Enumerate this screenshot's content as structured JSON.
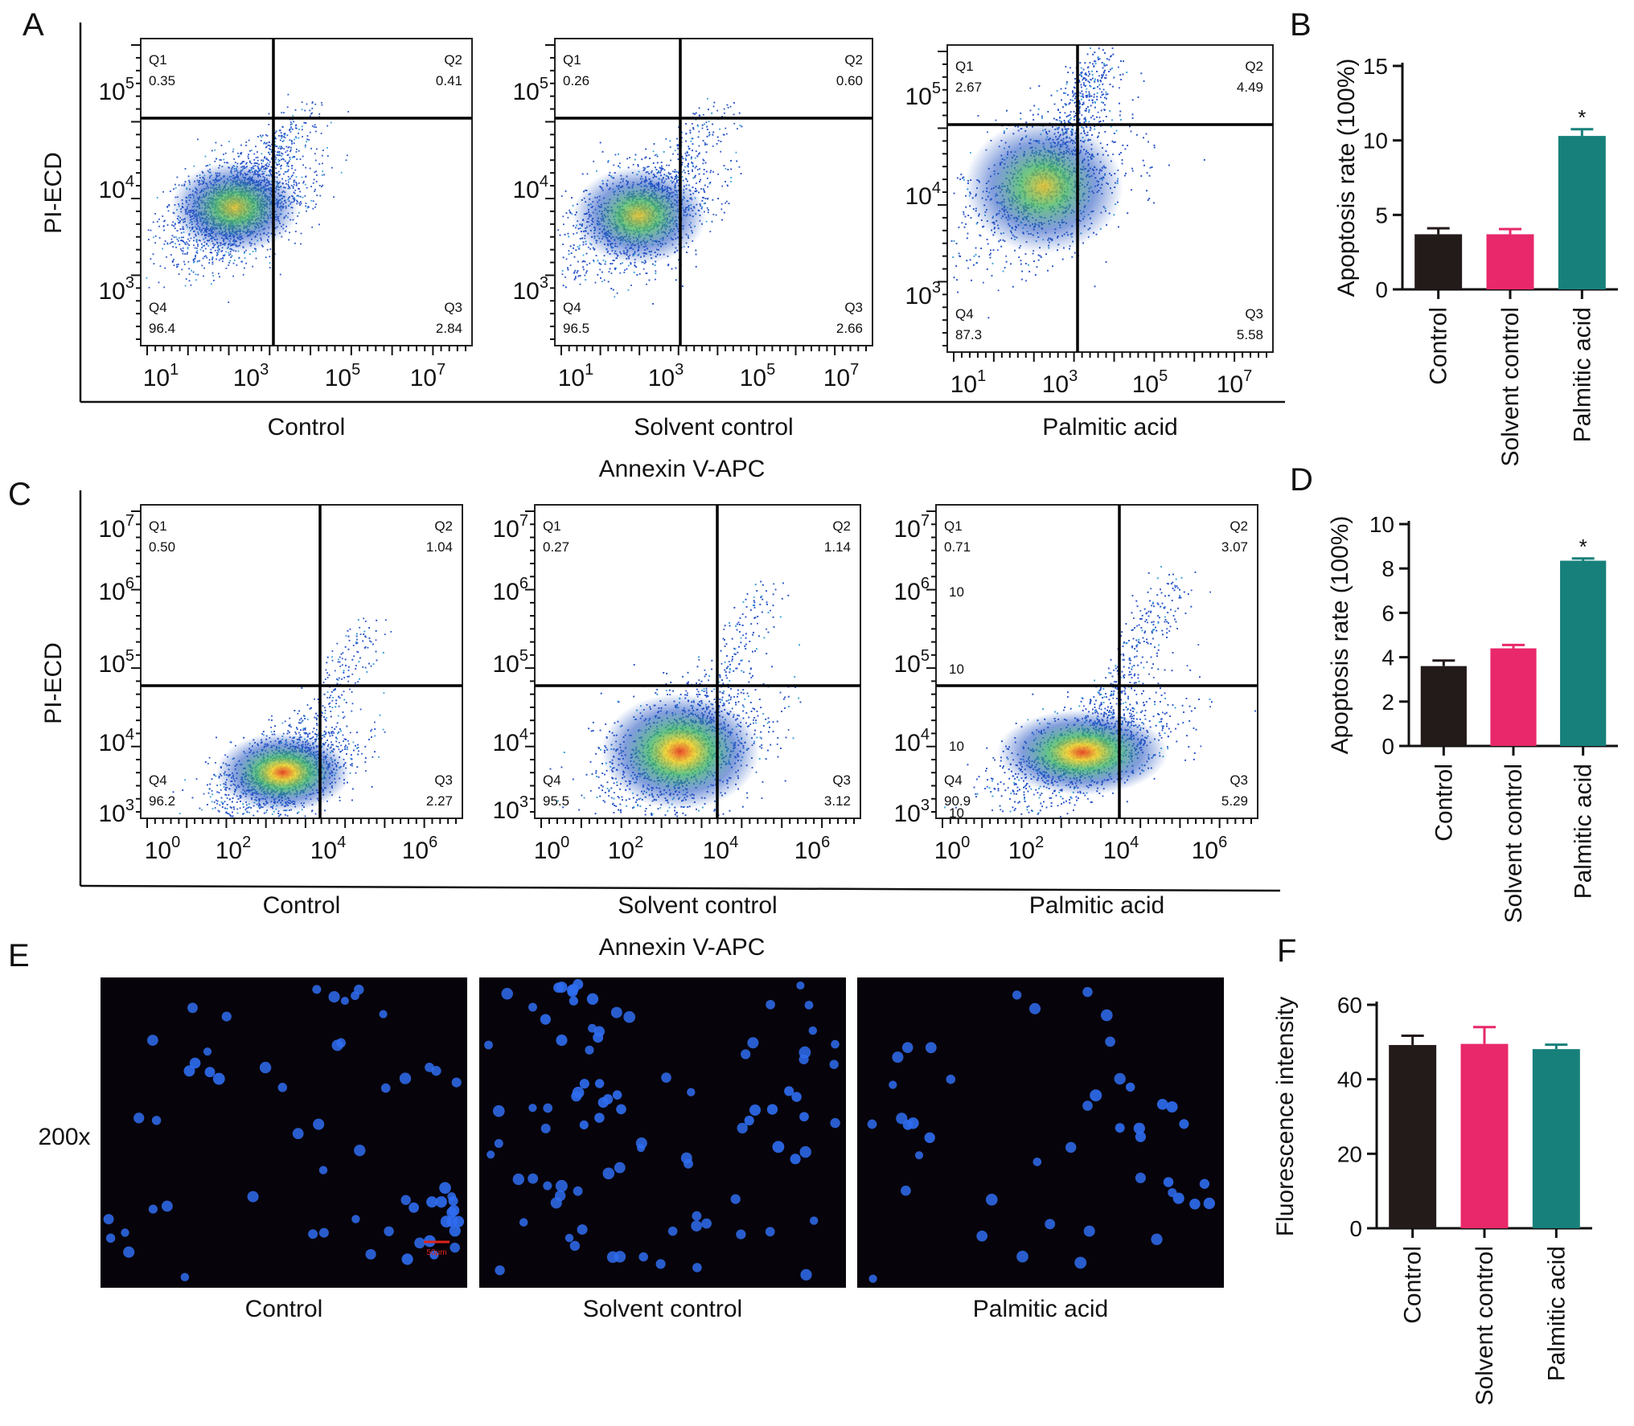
{
  "figure": {
    "panel_letters": [
      "A",
      "B",
      "C",
      "D",
      "E",
      "F"
    ],
    "magnification_label": "200x",
    "scale_bar_label": "50μm"
  },
  "colors": {
    "control": "#231a1a",
    "solvent_control": "#e8286a",
    "palmitic_acid": "#17807a",
    "error_control": "#231a1a",
    "error_solvent": "#e8286a",
    "error_palmitic": "#17807a",
    "nucleus": "#2f6df0",
    "micrograph_bg": "#07030a"
  },
  "flow_A": {
    "y_label": "PI-ECD",
    "x_label": "Annexin V-APC",
    "y_ticks": [
      {
        "base": "10",
        "exp": "5"
      },
      {
        "base": "10",
        "exp": "4"
      },
      {
        "base": "10",
        "exp": "3"
      }
    ],
    "x_ticks": [
      {
        "base": "10",
        "exp": "1"
      },
      {
        "base": "10",
        "exp": "3"
      },
      {
        "base": "10",
        "exp": "5"
      },
      {
        "base": "10",
        "exp": "7"
      }
    ],
    "plots": [
      {
        "title": "Control",
        "q1": "Q1",
        "q1v": "0.35",
        "q2": "Q2",
        "q2v": "0.41",
        "q3": "Q3",
        "q3v": "2.84",
        "q4": "Q4",
        "q4v": "96.4"
      },
      {
        "title": "Solvent control",
        "q1": "Q1",
        "q1v": "0.26",
        "q2": "Q2",
        "q2v": "0.60",
        "q3": "Q3",
        "q3v": "2.66",
        "q4": "Q4",
        "q4v": "96.5"
      },
      {
        "title": "Palmitic acid",
        "q1": "Q1",
        "q1v": "2.67",
        "q2": "Q2",
        "q2v": "4.49",
        "q3": "Q3",
        "q3v": "5.58",
        "q4": "Q4",
        "q4v": "87.3"
      }
    ]
  },
  "flow_C": {
    "y_label": "PI-ECD",
    "x_label": "Annexin V-APC",
    "y_ticks": [
      {
        "base": "10",
        "exp": "7"
      },
      {
        "base": "10",
        "exp": "6"
      },
      {
        "base": "10",
        "exp": "5"
      },
      {
        "base": "10",
        "exp": "4"
      },
      {
        "base": "10",
        "exp": "3"
      }
    ],
    "x_ticks": [
      {
        "base": "10",
        "exp": "0"
      },
      {
        "base": "10",
        "exp": "2"
      },
      {
        "base": "10",
        "exp": "4"
      },
      {
        "base": "10",
        "exp": "6"
      }
    ],
    "stray_marks": [
      "10",
      "10",
      "10",
      "10"
    ],
    "plots": [
      {
        "title": "Control",
        "q1": "Q1",
        "q1v": "0.50",
        "q2": "Q2",
        "q2v": "1.04",
        "q3": "Q3",
        "q3v": "2.27",
        "q4": "Q4",
        "q4v": "96.2"
      },
      {
        "title": "Solvent control",
        "q1": "Q1",
        "q1v": "0.27",
        "q2": "Q2",
        "q2v": "1.14",
        "q3": "Q3",
        "q3v": "3.12",
        "q4": "Q4",
        "q4v": "95.5"
      },
      {
        "title": "Palmitic acid",
        "q1": "Q1",
        "q1v": "0.71",
        "q2": "Q2",
        "q2v": "3.07",
        "q3": "Q3",
        "q3v": "5.29",
        "q4": "Q4",
        "q4v": "90.9"
      }
    ]
  },
  "micrographs": [
    {
      "title": "Control"
    },
    {
      "title": "Solvent control"
    },
    {
      "title": "Palmitic acid"
    }
  ],
  "chart_data": [
    {
      "panel": "B",
      "type": "bar",
      "categories": [
        "Control",
        "Solvent control",
        "Palmitic acid"
      ],
      "values": [
        3.7,
        3.7,
        10.3
      ],
      "errors": [
        0.4,
        0.35,
        0.45
      ],
      "significance": [
        "",
        "",
        "*"
      ],
      "ylabel": "Apoptosis rate (100%)",
      "ylim": [
        0,
        15
      ],
      "yticks": [
        0,
        5,
        10,
        15
      ]
    },
    {
      "panel": "D",
      "type": "bar",
      "categories": [
        "Control",
        "Solvent control",
        "Palmitic acid"
      ],
      "values": [
        3.6,
        4.4,
        8.35
      ],
      "errors": [
        0.25,
        0.15,
        0.1
      ],
      "significance": [
        "",
        "",
        "*"
      ],
      "ylabel": "Apoptosis rate (100%)",
      "ylim": [
        0,
        10
      ],
      "yticks": [
        0,
        2,
        4,
        6,
        8,
        10
      ]
    },
    {
      "panel": "F",
      "type": "bar",
      "categories": [
        "Control",
        "Solvent control",
        "Palmitic acid"
      ],
      "values": [
        49.2,
        49.5,
        48.1
      ],
      "errors": [
        2.5,
        4.5,
        1.2
      ],
      "significance": [
        "",
        "",
        ""
      ],
      "ylabel": "Fluorescence intensity",
      "ylim": [
        0,
        60
      ],
      "yticks": [
        0,
        20,
        40,
        60
      ]
    }
  ]
}
